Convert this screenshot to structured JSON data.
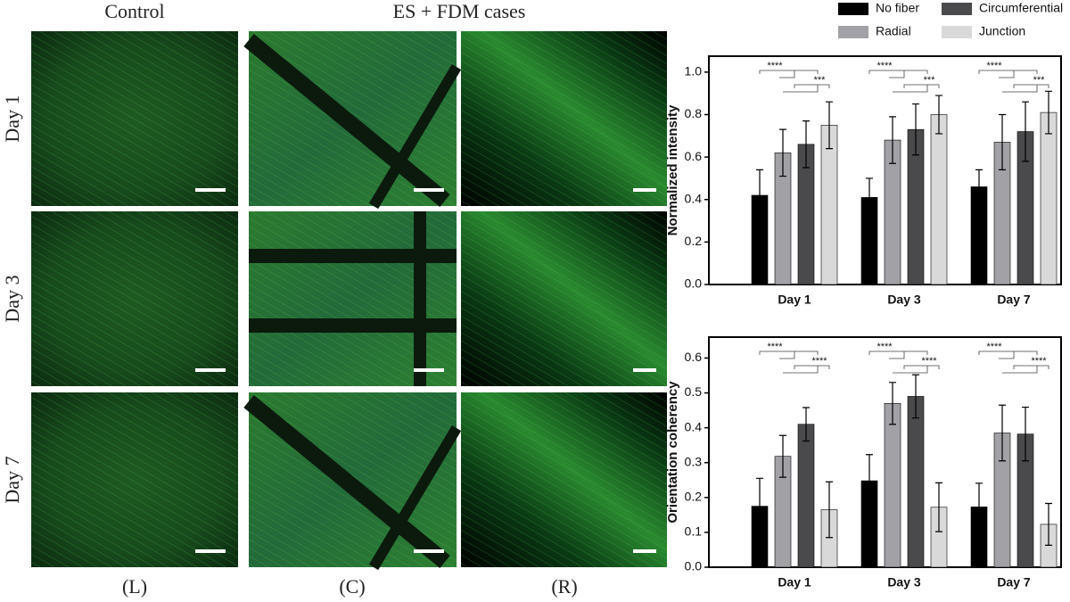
{
  "figure": {
    "column_headers": [
      "Control",
      "ES + FDM cases"
    ],
    "row_labels": [
      "Day 1",
      "Day 3",
      "Day 7"
    ],
    "panel_labels": [
      "(L)",
      "(C)",
      "(R)"
    ]
  },
  "chart_data": [
    {
      "type": "bar",
      "y_label": "Normalized intensity",
      "categories": [
        "Day 1",
        "Day 3",
        "Day 7"
      ],
      "legend": "top",
      "series": [
        {
          "name": "No fiber",
          "color": "#000000",
          "values": [
            0.42,
            0.41,
            0.46
          ],
          "errors": [
            0.12,
            0.09,
            0.08
          ]
        },
        {
          "name": "Radial",
          "color": "#a2a2a6",
          "values": [
            0.62,
            0.68,
            0.67
          ],
          "errors": [
            0.11,
            0.11,
            0.13
          ]
        },
        {
          "name": "Circumferential",
          "color": "#4a4a4c",
          "values": [
            0.66,
            0.73,
            0.72
          ],
          "errors": [
            0.11,
            0.12,
            0.14
          ]
        },
        {
          "name": "Junction",
          "color": "#d9d9d9",
          "values": [
            0.75,
            0.8,
            0.81
          ],
          "errors": [
            0.11,
            0.09,
            0.1
          ]
        }
      ],
      "annotations": [
        [
          "****",
          "***"
        ],
        [
          "****",
          "***"
        ],
        [
          "****",
          "***"
        ]
      ],
      "ylim": [
        0,
        1.075
      ],
      "yticks": [
        {
          "value": 0,
          "label": "0.0"
        },
        0.2,
        0.4,
        0.6,
        0.8,
        {
          "value": 1,
          "label": "1.0"
        }
      ]
    },
    {
      "type": "bar",
      "y_label": "Orientation coherency",
      "categories": [
        "Day 1",
        "Day 3",
        "Day 7"
      ],
      "series": [
        {
          "color": "#000000",
          "values": [
            0.175,
            0.248,
            0.173
          ],
          "errors": [
            0.08,
            0.075,
            0.068
          ]
        },
        {
          "color": "#a2a2a6",
          "values": [
            0.318,
            0.47,
            0.385
          ],
          "errors": [
            0.06,
            0.06,
            0.08
          ]
        },
        {
          "color": "#4a4a4c",
          "values": [
            0.41,
            0.49,
            0.382
          ],
          "errors": [
            0.048,
            0.062,
            0.077
          ]
        },
        {
          "color": "#d9d9d9",
          "values": [
            0.165,
            0.172,
            0.123
          ],
          "errors": [
            0.08,
            0.07,
            0.06
          ]
        }
      ],
      "annotations": [
        [
          "****",
          "****"
        ],
        [
          "****",
          "****"
        ],
        [
          "****",
          "****"
        ]
      ],
      "ylim": [
        0,
        0.66
      ],
      "yticks": [
        {
          "value": 0,
          "label": "0.0"
        },
        0.1,
        0.2,
        0.3,
        0.4,
        0.5,
        0.6
      ]
    }
  ]
}
